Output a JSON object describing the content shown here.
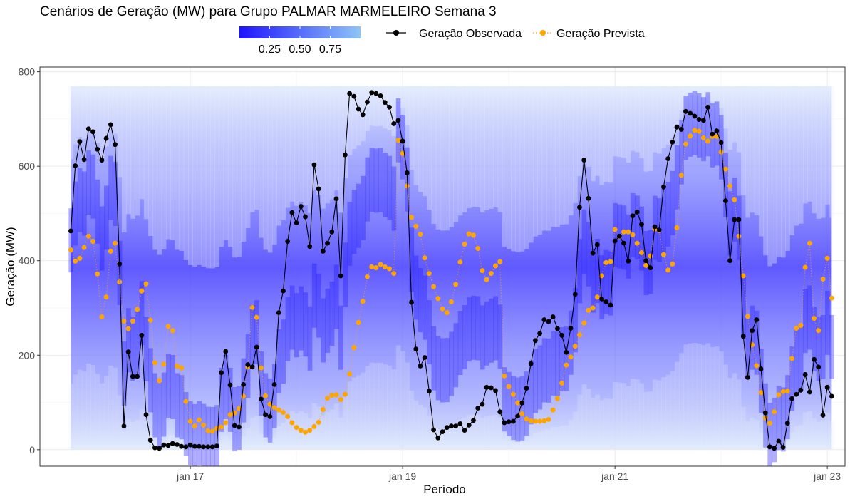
{
  "chart_data": {
    "type": "line",
    "title": "Cenários de Geração (MW) para Grupo PALMAR MARMELEIRO Semana 3",
    "xlabel": "Período",
    "ylabel": "Geração (MW)",
    "ylim": [
      -35,
      810
    ],
    "yticks": [
      0,
      200,
      400,
      600,
      800
    ],
    "x_start": "2022-01-15T21:00",
    "x_step_hours": 1,
    "x_range": [
      "2022-01-15T14:00",
      "2022-01-23T04:00"
    ],
    "xticks": [
      {
        "label": "jan 17",
        "date": "2022-01-17T00:00"
      },
      {
        "label": "jan 19",
        "date": "2022-01-19T00:00"
      },
      {
        "label": "jan 21",
        "date": "2022-01-21T00:00"
      },
      {
        "label": "jan 23",
        "date": "2022-01-23T00:00"
      }
    ],
    "grid": true,
    "legend_position": "top",
    "scenario_band": {
      "min": 0,
      "max": 770
    },
    "fill_legend": {
      "ticks": [
        "0.25",
        "0.50",
        "0.75"
      ],
      "low_color": "#1e14ff",
      "high_color": "#8ec5f5"
    },
    "series": [
      {
        "name": "Geração Observada",
        "color": "#000000",
        "style": "solid",
        "values": [
          463,
          601,
          652,
          614,
          679,
          673,
          636,
          613,
          659,
          688,
          646,
          393,
          50,
          207,
          155,
          155,
          242,
          74,
          20,
          4,
          3,
          10,
          9,
          13,
          11,
          7,
          6,
          10,
          7,
          7,
          6,
          6,
          6,
          8,
          163,
          208,
          137,
          51,
          48,
          138,
          180,
          175,
          217,
          107,
          74,
          70,
          138,
          290,
          336,
          441,
          502,
          480,
          515,
          493,
          430,
          603,
          552,
          420,
          437,
          461,
          531,
          368,
          624,
          754,
          748,
          721,
          709,
          736,
          756,
          754,
          749,
          735,
          725,
          690,
          697,
          653,
          586,
          312,
          213,
          177,
          195,
          124,
          42,
          25,
          38,
          47,
          50,
          50,
          55,
          41,
          52,
          62,
          88,
          96,
          132,
          131,
          125,
          80,
          57,
          59,
          60,
          71,
          99,
          130,
          182,
          231,
          246,
          275,
          271,
          281,
          256,
          242,
          206,
          257,
          329,
          513,
          613,
          532,
          416,
          434,
          319,
          313,
          306,
          442,
          452,
          437,
          399,
          495,
          503,
          477,
          400,
          385,
          472,
          465,
          556,
          616,
          651,
          683,
          678,
          716,
          712,
          706,
          699,
          697,
          725,
          668,
          675,
          650,
          527,
          400,
          487,
          487,
          240,
          153,
          252,
          275,
          171,
          78,
          6,
          3,
          18,
          5,
          56,
          108,
          117,
          126,
          159,
          122,
          191,
          175,
          73,
          132,
          113
        ]
      },
      {
        "name": "Geração Prevista",
        "color": "#ffa500",
        "style": "dotted",
        "values": [
          423,
          399,
          405,
          428,
          452,
          441,
          372,
          281,
          323,
          420,
          437,
          355,
          272,
          256,
          272,
          297,
          336,
          351,
          274,
          184,
          146,
          181,
          261,
          252,
          177,
          173,
          102,
          60,
          50,
          63,
          52,
          40,
          39,
          45,
          48,
          57,
          74,
          78,
          87,
          113,
          175,
          301,
          280,
          173,
          114,
          96,
          89,
          84,
          79,
          70,
          57,
          47,
          41,
          37,
          41,
          49,
          58,
          85,
          109,
          115,
          116,
          106,
          117,
          160,
          216,
          269,
          314,
          366,
          387,
          385,
          392,
          387,
          383,
          373,
          655,
          627,
          558,
          492,
          473,
          456,
          406,
          373,
          345,
          320,
          298,
          290,
          313,
          350,
          397,
          435,
          457,
          454,
          426,
          379,
          360,
          373,
          389,
          398,
          156,
          134,
          117,
          99,
          76,
          65,
          61,
          60,
          60,
          61,
          64,
          84,
          108,
          141,
          179,
          196,
          219,
          243,
          268,
          295,
          300,
          323,
          368,
          396,
          398,
          466,
          451,
          461,
          461,
          455,
          437,
          417,
          390,
          410,
          467,
          464,
          413,
          380,
          393,
          470,
          581,
          647,
          664,
          676,
          674,
          660,
          653,
          663,
          663,
          630,
          594,
          558,
          529,
          452,
          368,
          282,
          222,
          178,
          121,
          67,
          56,
          80,
          116,
          123,
          124,
          193,
          257,
          263,
          386,
          437,
          278,
          252,
          361,
          405,
          321
        ]
      }
    ]
  }
}
